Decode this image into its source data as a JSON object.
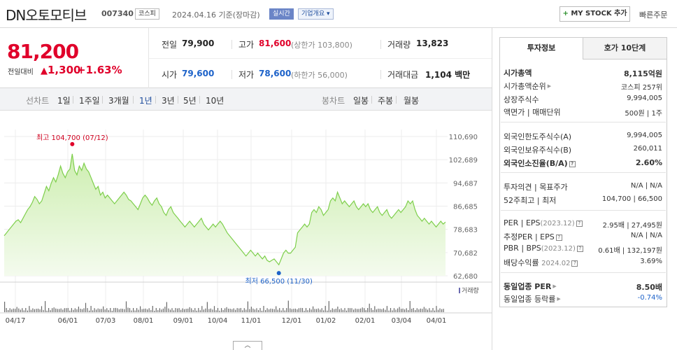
{
  "header": {
    "stock_name": "DN오토모티브",
    "stock_code": "007340",
    "market": "코스피",
    "date": "2024.04.16 기준(장마감)",
    "realtime": "실시간",
    "company_overview": "기업개요",
    "mystock_label": "MY STOCK 추가",
    "quick_order": "빠른주문"
  },
  "price": {
    "current": "81,200",
    "change_label": "전일대비",
    "change_amount": "1,300",
    "change_pct": "+1.63%"
  },
  "quotes": {
    "prev_label": "전일",
    "prev": "79,900",
    "high_label": "고가",
    "high": "81,600",
    "upper_limit": "(상한가 103,800)",
    "volume_label": "거래량",
    "volume": "13,823",
    "open_label": "시가",
    "open": "79,600",
    "low_label": "저가",
    "low": "78,600",
    "lower_limit": "(하한가 56,000)",
    "amount_label": "거래대금",
    "amount": "1,104 백만"
  },
  "period_bar": {
    "line_label": "선차트",
    "periods": [
      "1일",
      "1주일",
      "3개월",
      "1년",
      "3년",
      "5년",
      "10년"
    ],
    "selected": "1년",
    "candle_label": "봉차트",
    "candles": [
      "일봉",
      "주봉",
      "월봉"
    ]
  },
  "chart_data": {
    "type": "area",
    "x_ticks": [
      "04/17",
      "06/01",
      "07/03",
      "08/01",
      "09/01",
      "10/04",
      "11/01",
      "12/01",
      "01/02",
      "02/01",
      "03/04",
      "04/01"
    ],
    "y_ticks": [
      "110,690",
      "102,689",
      "94,687",
      "86,685",
      "78,683",
      "70,682",
      "62,680"
    ],
    "ylim": [
      62680,
      110690
    ],
    "high_label": "최고 104,700 (07/12)",
    "low_label": "최저 66,500 (11/30)",
    "high_value": 104700,
    "low_value": 66500,
    "volume_label": "거래량",
    "series": [
      {
        "values": [
          76500,
          77500,
          78500,
          79500,
          80500,
          81500,
          82000,
          81000,
          82500,
          84000,
          85500,
          86500,
          88000,
          90000,
          89000,
          87500,
          88500,
          91000,
          93500,
          92000,
          94500,
          96500,
          95000,
          97500,
          100500,
          98000,
          96500,
          98500,
          99500,
          104700,
          99000,
          97500,
          100500,
          99000,
          101500,
          99500,
          98500,
          96500,
          94500,
          92500,
          93500,
          90500,
          91500,
          89500,
          90500,
          89500,
          88500,
          87500,
          88500,
          89500,
          90500,
          91500,
          90500,
          89000,
          88500,
          87500,
          86500,
          85500,
          87500,
          89500,
          90500,
          89500,
          88000,
          87000,
          88500,
          89500,
          87500,
          86500,
          84500,
          83500,
          85500,
          86500,
          84500,
          83500,
          82500,
          81500,
          80500,
          79500,
          80500,
          81500,
          80500,
          79500,
          80500,
          81500,
          82500,
          80500,
          79500,
          78500,
          79500,
          80500,
          79500,
          80500,
          81500,
          80500,
          79000,
          77500,
          76500,
          75500,
          74500,
          73500,
          72500,
          71500,
          70500,
          69500,
          70500,
          71500,
          70500,
          69500,
          70500,
          69500,
          68500,
          69500,
          68000,
          67500,
          68000,
          68500,
          67500,
          66500,
          68500,
          70500,
          71500,
          70500,
          70500,
          71500,
          72500,
          77500,
          78500,
          79500,
          80500,
          79500,
          80500,
          84500,
          85500,
          84500,
          86500,
          85500,
          83500,
          84500,
          85500,
          88500,
          89500,
          88500,
          91500,
          89500,
          87500,
          88500,
          87500,
          86500,
          87500,
          88500,
          86500,
          85500,
          86500,
          87500,
          86500,
          87500,
          85500,
          84500,
          85500,
          86500,
          84500,
          83500,
          84500,
          85500,
          83500,
          82500,
          83500,
          84500,
          85500,
          84500,
          85500,
          86500,
          88500,
          87500,
          88500,
          85500,
          83500,
          82500,
          81500,
          82500,
          81500,
          80500,
          81500,
          80500,
          79500,
          80500,
          81500,
          80500,
          81200
        ]
      }
    ]
  },
  "panel": {
    "tab_invest": "투자정보",
    "tab_quote": "호가 10단계",
    "market_cap_label": "시가총액",
    "market_cap": "8,115억원",
    "rank_label": "시가총액순위",
    "rank": "코스피 257위",
    "shares_label": "상장주식수",
    "shares": "9,994,005",
    "face_label": "액면가",
    "unit_label": "매매단위",
    "face": "500원",
    "unit": "1주",
    "foreign_limit_label": "외국인한도주식수(A)",
    "foreign_limit": "9,994,005",
    "foreign_hold_label": "외국인보유주식수(B)",
    "foreign_hold": "260,011",
    "foreign_ratio_label": "외국인소진율(B/A)",
    "foreign_ratio": "2.60%",
    "opinion_label": "투자의견",
    "target_label": "목표주가",
    "opinion": "N/A",
    "target": "N/A",
    "w52_label": "52주최고",
    "w52_low_label": "최저",
    "w52_high": "104,700",
    "w52_low": "66,500",
    "per_label": "PER",
    "eps_label": "EPS",
    "eps_year": "(2023.12)",
    "per": "2.95배",
    "eps": "27,495원",
    "est_per_label": "추정PER",
    "est_eps_label": "EPS",
    "est_per": "N/A",
    "est_eps": "N/A",
    "pbr_label": "PBR",
    "bps_label": "BPS",
    "bps_year": "(2023.12)",
    "pbr": "0.61배",
    "bps": "132,197원",
    "div_label": "배당수익률",
    "div_year": "2024.02",
    "div": "3.69%",
    "ind_per_label": "동일업종 PER",
    "ind_per": "8.50배",
    "ind_chg_label": "동일업종 등락률",
    "ind_chg": "-0.74%"
  },
  "colors": {
    "up": "#e0002a",
    "down": "#1d62c9",
    "line": "#7ecf4c",
    "fill_top": "#d6f2bf"
  }
}
